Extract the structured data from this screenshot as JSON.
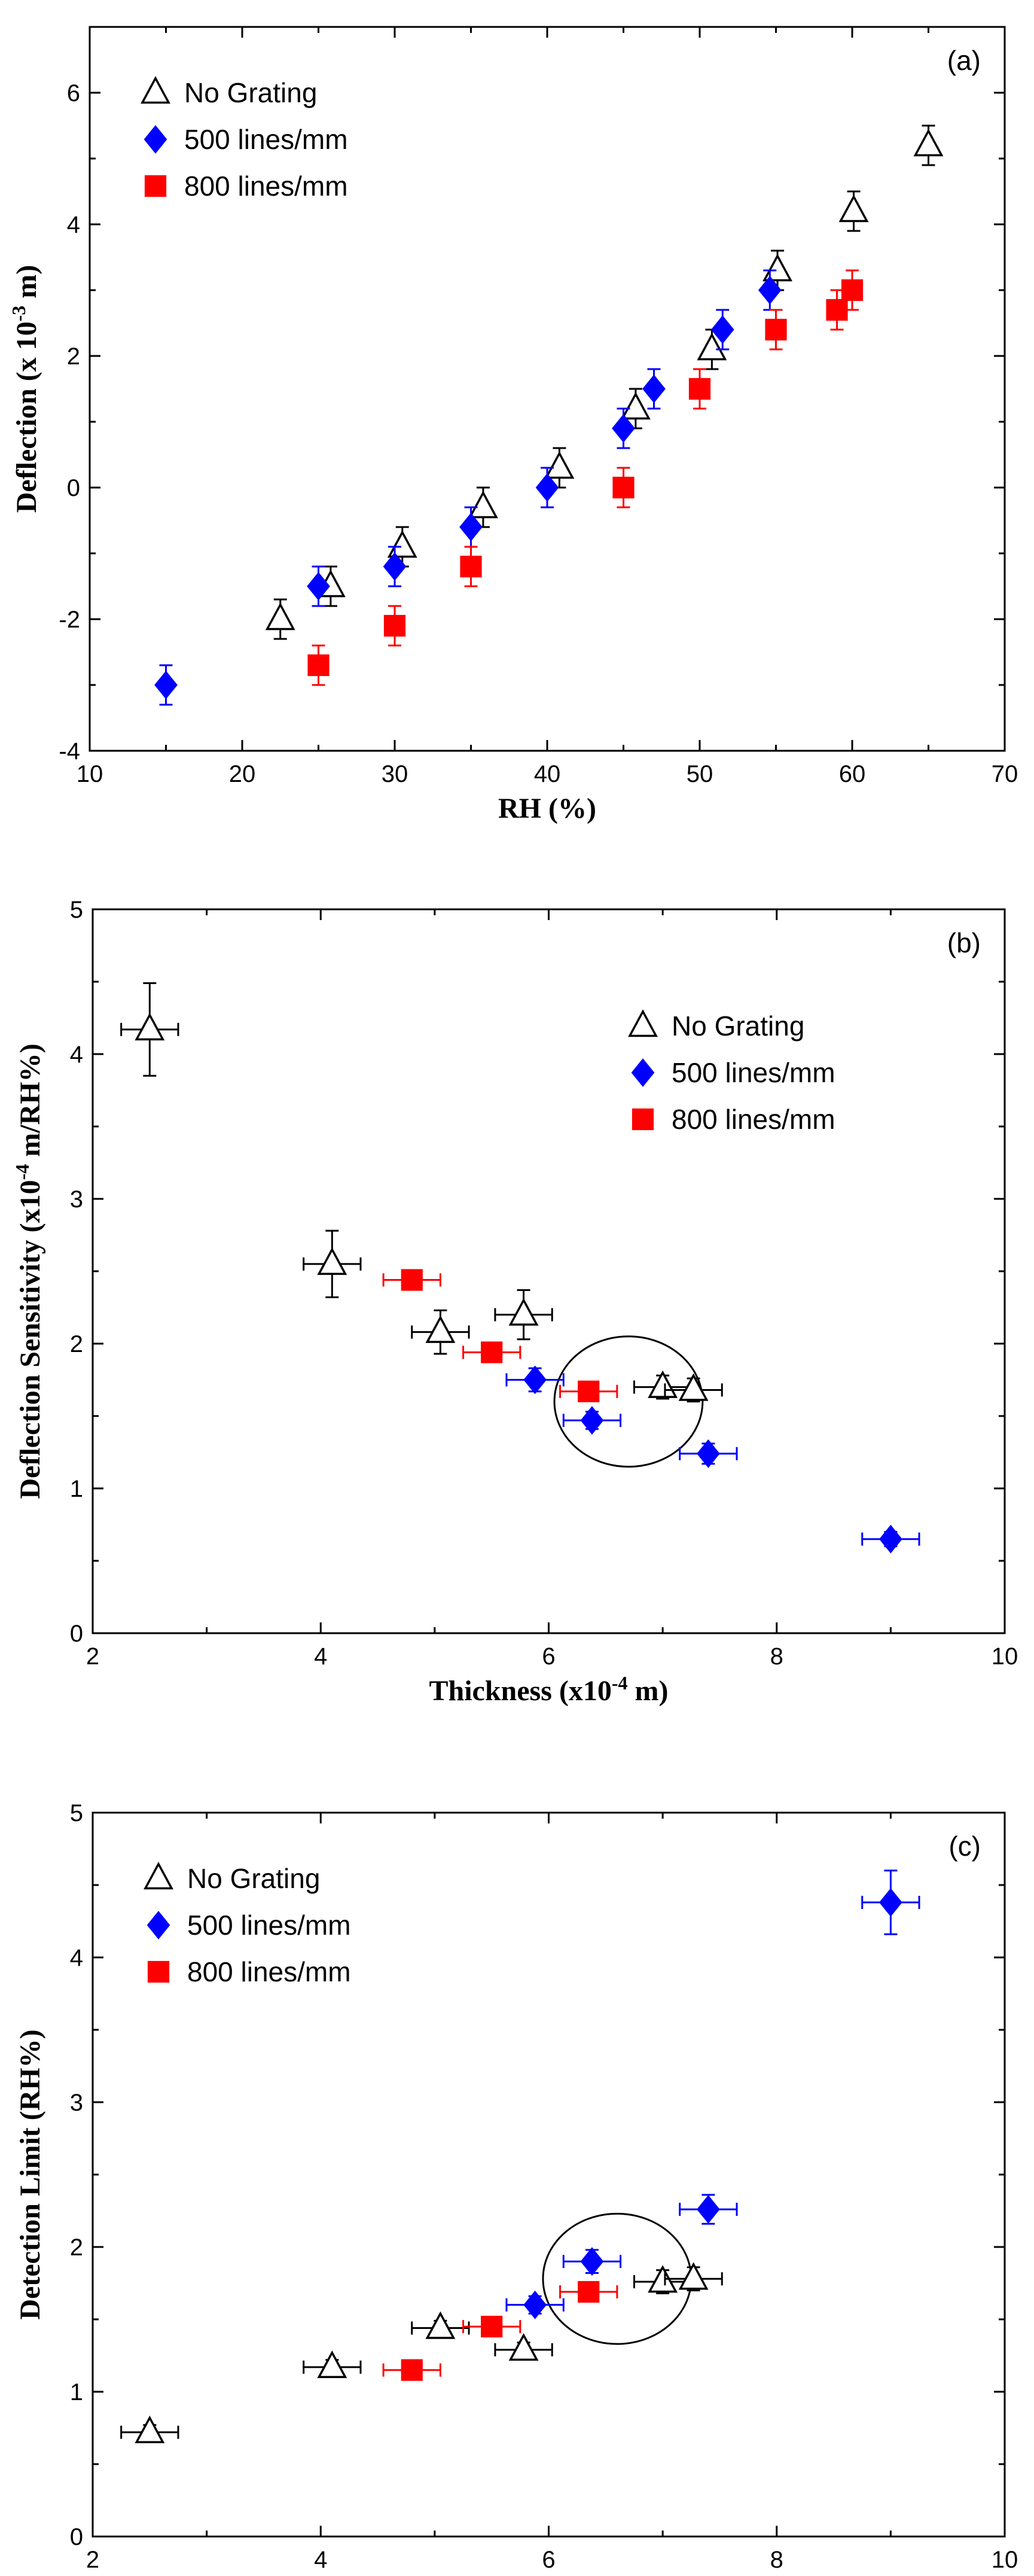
{
  "colors": {
    "no_grating": "#000000",
    "lines_500": "#0000ff",
    "lines_800": "#ff0000"
  },
  "chart_data": [
    {
      "type": "scatter",
      "panel_label": "(a)",
      "xlabel": "RH (%)",
      "ylabel": "Deflection (x 10",
      "ylabel_sup": "-3",
      "ylabel_end": " m)",
      "xlim": [
        10,
        70
      ],
      "ylim": [
        -4,
        7
      ],
      "xticks": [
        10,
        20,
        30,
        40,
        50,
        60,
        70
      ],
      "yticks": [
        -4,
        -2,
        0,
        2,
        4,
        6
      ],
      "legend_position": "top-left",
      "series": [
        {
          "name": "No Grating",
          "marker": "open-triangle",
          "color": "#000000",
          "points": [
            {
              "x": 22.5,
              "y": -2.0,
              "yerr": 0.3
            },
            {
              "x": 25.8,
              "y": -1.5,
              "yerr": 0.3
            },
            {
              "x": 30.5,
              "y": -0.9,
              "yerr": 0.3
            },
            {
              "x": 35.8,
              "y": -0.3,
              "yerr": 0.3
            },
            {
              "x": 40.8,
              "y": 0.3,
              "yerr": 0.3
            },
            {
              "x": 45.8,
              "y": 1.2,
              "yerr": 0.3
            },
            {
              "x": 50.8,
              "y": 2.1,
              "yerr": 0.3
            },
            {
              "x": 55.1,
              "y": 3.3,
              "yerr": 0.3
            },
            {
              "x": 60.1,
              "y": 4.2,
              "yerr": 0.3
            },
            {
              "x": 65.0,
              "y": 5.2,
              "yerr": 0.3
            }
          ]
        },
        {
          "name": "500 lines/mm",
          "marker": "filled-diamond",
          "color": "#0000ff",
          "points": [
            {
              "x": 15.0,
              "y": -3.0,
              "yerr": 0.3
            },
            {
              "x": 25.0,
              "y": -1.5,
              "yerr": 0.3
            },
            {
              "x": 30.0,
              "y": -1.2,
              "yerr": 0.3
            },
            {
              "x": 35.0,
              "y": -0.6,
              "yerr": 0.3
            },
            {
              "x": 40.0,
              "y": 0.0,
              "yerr": 0.3
            },
            {
              "x": 45.0,
              "y": 0.9,
              "yerr": 0.3
            },
            {
              "x": 47.0,
              "y": 1.5,
              "yerr": 0.3
            },
            {
              "x": 51.5,
              "y": 2.4,
              "yerr": 0.3
            },
            {
              "x": 54.6,
              "y": 3.0,
              "yerr": 0.3
            }
          ]
        },
        {
          "name": "800 lines/mm",
          "marker": "filled-square",
          "color": "#ff0000",
          "points": [
            {
              "x": 25.0,
              "y": -2.7,
              "yerr": 0.3
            },
            {
              "x": 30.0,
              "y": -2.1,
              "yerr": 0.3
            },
            {
              "x": 35.0,
              "y": -1.2,
              "yerr": 0.3
            },
            {
              "x": 45.0,
              "y": 0.0,
              "yerr": 0.3
            },
            {
              "x": 50.0,
              "y": 1.5,
              "yerr": 0.3
            },
            {
              "x": 55.0,
              "y": 2.4,
              "yerr": 0.3
            },
            {
              "x": 59.0,
              "y": 2.7,
              "yerr": 0.3
            },
            {
              "x": 60.0,
              "y": 3.0,
              "yerr": 0.3
            }
          ]
        }
      ]
    },
    {
      "type": "scatter",
      "panel_label": "(b)",
      "xlabel": "Thickness (x10",
      "xlabel_sup": "-4",
      "xlabel_end": " m)",
      "ylabel": "Deflection Sensitivity (x10",
      "ylabel_sup": "-4",
      "ylabel_end": " m/RH%)",
      "xlim": [
        2,
        10
      ],
      "ylim": [
        0,
        5
      ],
      "xticks": [
        2,
        4,
        6,
        8,
        10
      ],
      "yticks": [
        0,
        1,
        2,
        3,
        4,
        5
      ],
      "legend_position": "top-right",
      "highlight_circle": {
        "cx": 6.7,
        "cy": 1.6,
        "rx": 0.65,
        "ry": 0.45
      },
      "series": [
        {
          "name": "No Grating",
          "marker": "open-triangle",
          "color": "#000000",
          "points": [
            {
              "x": 2.5,
              "y": 4.17,
              "xerr": 0.25,
              "yerr": 0.32
            },
            {
              "x": 4.1,
              "y": 2.55,
              "xerr": 0.25,
              "yerr": 0.23
            },
            {
              "x": 5.05,
              "y": 2.08,
              "xerr": 0.25,
              "yerr": 0.15
            },
            {
              "x": 5.78,
              "y": 2.2,
              "xerr": 0.25,
              "yerr": 0.17
            },
            {
              "x": 7.0,
              "y": 1.7,
              "xerr": 0.25,
              "yerr": 0.08
            },
            {
              "x": 7.27,
              "y": 1.68,
              "xerr": 0.25,
              "yerr": 0.08
            }
          ]
        },
        {
          "name": "500 lines/mm",
          "marker": "filled-diamond",
          "color": "#0000ff",
          "points": [
            {
              "x": 5.88,
              "y": 1.75,
              "xerr": 0.25,
              "yerr": 0.08
            },
            {
              "x": 6.38,
              "y": 1.47,
              "xerr": 0.25,
              "yerr": 0.06
            },
            {
              "x": 7.4,
              "y": 1.24,
              "xerr": 0.25,
              "yerr": 0.07
            },
            {
              "x": 9.0,
              "y": 0.65,
              "xerr": 0.25,
              "yerr": 0.05
            }
          ]
        },
        {
          "name": "800 lines/mm",
          "marker": "filled-square",
          "color": "#ff0000",
          "points": [
            {
              "x": 4.8,
              "y": 2.44,
              "xerr": 0.25,
              "yerr": 0.05
            },
            {
              "x": 5.5,
              "y": 1.94,
              "xerr": 0.25,
              "yerr": 0.05
            },
            {
              "x": 6.35,
              "y": 1.67,
              "xerr": 0.25,
              "yerr": 0.05
            }
          ]
        }
      ]
    },
    {
      "type": "scatter",
      "panel_label": "(c)",
      "xlabel": "Thickness (x10",
      "xlabel_sup": "-4",
      "xlabel_end": " m)",
      "ylabel": "Detection Limit (RH%)",
      "xlim": [
        2,
        10
      ],
      "ylim": [
        0,
        5
      ],
      "xticks": [
        2,
        4,
        6,
        8,
        10
      ],
      "yticks": [
        0,
        1,
        2,
        3,
        4,
        5
      ],
      "legend_position": "top-left",
      "highlight_circle": {
        "cx": 6.6,
        "cy": 1.78,
        "rx": 0.65,
        "ry": 0.45
      },
      "series": [
        {
          "name": "No Grating",
          "marker": "open-triangle",
          "color": "#000000",
          "points": [
            {
              "x": 2.5,
              "y": 0.72,
              "xerr": 0.25,
              "yerr": 0.05
            },
            {
              "x": 4.1,
              "y": 1.17,
              "xerr": 0.25,
              "yerr": 0.05
            },
            {
              "x": 5.05,
              "y": 1.44,
              "xerr": 0.25,
              "yerr": 0.05
            },
            {
              "x": 5.78,
              "y": 1.29,
              "xerr": 0.25,
              "yerr": 0.05
            },
            {
              "x": 7.0,
              "y": 1.76,
              "xerr": 0.25,
              "yerr": 0.08
            },
            {
              "x": 7.27,
              "y": 1.78,
              "xerr": 0.25,
              "yerr": 0.08
            }
          ]
        },
        {
          "name": "500 lines/mm",
          "marker": "filled-diamond",
          "color": "#0000ff",
          "points": [
            {
              "x": 5.88,
              "y": 1.6,
              "xerr": 0.25,
              "yerr": 0.06
            },
            {
              "x": 6.38,
              "y": 1.9,
              "xerr": 0.25,
              "yerr": 0.08
            },
            {
              "x": 7.4,
              "y": 2.26,
              "xerr": 0.25,
              "yerr": 0.1
            },
            {
              "x": 9.0,
              "y": 4.38,
              "xerr": 0.25,
              "yerr": 0.22
            }
          ]
        },
        {
          "name": "800 lines/mm",
          "marker": "filled-square",
          "color": "#ff0000",
          "points": [
            {
              "x": 4.8,
              "y": 1.15,
              "xerr": 0.25,
              "yerr": 0.04
            },
            {
              "x": 5.5,
              "y": 1.45,
              "xerr": 0.25,
              "yerr": 0.05
            },
            {
              "x": 6.35,
              "y": 1.69,
              "xerr": 0.25,
              "yerr": 0.06
            }
          ]
        }
      ]
    }
  ]
}
